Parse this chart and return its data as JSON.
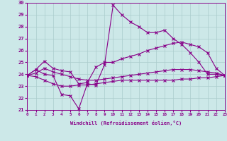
{
  "xlabel": "Windchill (Refroidissement éolien,°C)",
  "bg_color": "#cce8e8",
  "grid_color": "#aacccc",
  "line_color": "#880088",
  "xlim": [
    0,
    23
  ],
  "ylim": [
    21,
    30
  ],
  "xticks": [
    0,
    1,
    2,
    3,
    4,
    5,
    6,
    7,
    8,
    9,
    10,
    11,
    12,
    13,
    14,
    15,
    16,
    17,
    18,
    19,
    20,
    21,
    22,
    23
  ],
  "yticks": [
    21,
    22,
    23,
    24,
    25,
    26,
    27,
    28,
    29,
    30
  ],
  "x_values": [
    0,
    1,
    2,
    3,
    4,
    5,
    6,
    7,
    8,
    9,
    10,
    11,
    12,
    13,
    14,
    15,
    16,
    17,
    18,
    19,
    20,
    21,
    22,
    23
  ],
  "series": [
    [
      23.9,
      24.4,
      24.0,
      23.9,
      22.3,
      22.2,
      21.1,
      23.2,
      23.1,
      24.8,
      29.8,
      29.0,
      28.4,
      28.0,
      27.5,
      27.5,
      27.7,
      27.0,
      26.5,
      25.8,
      25.0,
      24.0,
      24.0,
      23.9
    ],
    [
      23.9,
      24.4,
      25.1,
      24.5,
      24.3,
      24.2,
      23.2,
      23.3,
      24.6,
      25.0,
      25.0,
      25.3,
      25.5,
      25.7,
      26.0,
      26.2,
      26.4,
      26.6,
      26.7,
      26.5,
      26.3,
      25.8,
      24.5,
      23.9
    ],
    [
      23.9,
      24.1,
      24.5,
      24.2,
      24.0,
      23.8,
      23.6,
      23.5,
      23.5,
      23.6,
      23.7,
      23.8,
      23.9,
      24.0,
      24.1,
      24.2,
      24.3,
      24.4,
      24.4,
      24.4,
      24.3,
      24.2,
      24.1,
      23.9
    ],
    [
      23.9,
      23.8,
      23.5,
      23.2,
      23.0,
      23.0,
      23.1,
      23.1,
      23.2,
      23.3,
      23.4,
      23.5,
      23.5,
      23.5,
      23.5,
      23.5,
      23.5,
      23.5,
      23.6,
      23.6,
      23.7,
      23.7,
      23.8,
      23.9
    ]
  ]
}
